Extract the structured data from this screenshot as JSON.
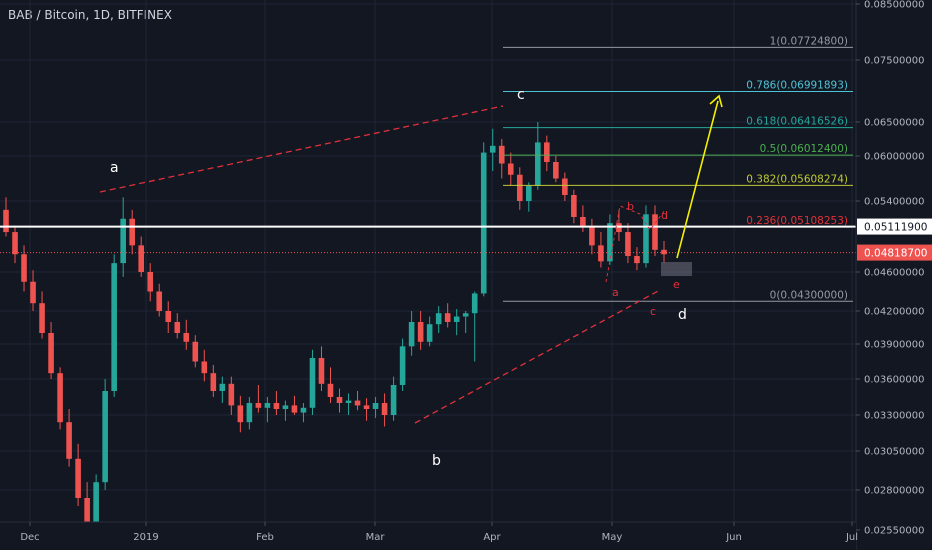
{
  "header": {
    "title": "BAB / Bitcoin, 1D, BITFINEX"
  },
  "chart_data": {
    "type": "candlestick",
    "symbol": "BAB / Bitcoin",
    "interval": "1D",
    "exchange": "BITFINEX",
    "x_ticks": [
      "Dec",
      "2019",
      "Feb",
      "Mar",
      "Apr",
      "May",
      "Jun",
      "Jul"
    ],
    "y_ticks": [
      "0.08500000",
      "0.07500000",
      "0.06500000",
      "0.06000000",
      "0.05400000",
      "0.04600000",
      "0.04200000",
      "0.03900000",
      "0.03600000",
      "0.03300000",
      "0.03050000",
      "0.02800000",
      "0.02550000"
    ],
    "ylim": [
      0.0255,
      0.085
    ],
    "current_price": "0.04818700",
    "horizontal_level": "0.05111900",
    "fibonacci": [
      {
        "label": "1(0.07724800)",
        "ratio": "1",
        "price": 0.077248,
        "color": "#9598a1"
      },
      {
        "label": "0.786(0.06991893)",
        "ratio": "0.786",
        "price": 0.06991893,
        "color": "#4fc3d6"
      },
      {
        "label": "0.618(0.06416526)",
        "ratio": "0.618",
        "price": 0.06416526,
        "color": "#26a69a"
      },
      {
        "label": "0.5(0.06012400)",
        "ratio": "0.5",
        "price": 0.060124,
        "color": "#4caf50"
      },
      {
        "label": "0.382(0.05608274)",
        "ratio": "0.382",
        "price": 0.05608274,
        "color": "#c0ca33"
      },
      {
        "label": "0.236(0.05108253)",
        "ratio": "0.236",
        "price": 0.05108253,
        "color": "#e0313a"
      },
      {
        "label": "0(0.04300000)",
        "ratio": "0",
        "price": 0.043,
        "color": "#9598a1"
      }
    ],
    "wave_labels_major": [
      "a",
      "b",
      "c",
      "d"
    ],
    "wave_labels_minor": [
      "a",
      "b",
      "c",
      "d",
      "e"
    ],
    "colors": {
      "up": "#26a69a",
      "down": "#ef5350",
      "projection": "#f4f000",
      "trendline": "#e0313a"
    },
    "candles": [
      [
        0.053,
        0.0545,
        0.05,
        0.0505
      ],
      [
        0.0505,
        0.0512,
        0.047,
        0.048
      ],
      [
        0.048,
        0.049,
        0.044,
        0.045
      ],
      [
        0.045,
        0.0462,
        0.042,
        0.0428
      ],
      [
        0.0428,
        0.044,
        0.0395,
        0.04
      ],
      [
        0.04,
        0.041,
        0.036,
        0.0365
      ],
      [
        0.0365,
        0.037,
        0.032,
        0.0325
      ],
      [
        0.0325,
        0.0335,
        0.0295,
        0.03
      ],
      [
        0.03,
        0.031,
        0.027,
        0.0275
      ],
      [
        0.0275,
        0.0285,
        0.0252,
        0.0258
      ],
      [
        0.0258,
        0.029,
        0.0252,
        0.0285
      ],
      [
        0.0285,
        0.036,
        0.028,
        0.035
      ],
      [
        0.035,
        0.048,
        0.0345,
        0.047
      ],
      [
        0.047,
        0.0545,
        0.0455,
        0.052
      ],
      [
        0.052,
        0.053,
        0.048,
        0.049
      ],
      [
        0.049,
        0.05,
        0.0455,
        0.046
      ],
      [
        0.046,
        0.047,
        0.043,
        0.044
      ],
      [
        0.044,
        0.0448,
        0.0415,
        0.042
      ],
      [
        0.042,
        0.043,
        0.04,
        0.041
      ],
      [
        0.041,
        0.0418,
        0.0395,
        0.04
      ],
      [
        0.04,
        0.0412,
        0.0385,
        0.0392
      ],
      [
        0.0392,
        0.0398,
        0.037,
        0.0375
      ],
      [
        0.0375,
        0.0385,
        0.0358,
        0.0365
      ],
      [
        0.0365,
        0.0372,
        0.0345,
        0.035
      ],
      [
        0.035,
        0.0362,
        0.034,
        0.0356
      ],
      [
        0.0356,
        0.0362,
        0.033,
        0.0338
      ],
      [
        0.0338,
        0.0346,
        0.0318,
        0.0325
      ],
      [
        0.0325,
        0.0345,
        0.032,
        0.034
      ],
      [
        0.034,
        0.0355,
        0.0332,
        0.0336
      ],
      [
        0.0336,
        0.0345,
        0.0325,
        0.034
      ],
      [
        0.034,
        0.035,
        0.033,
        0.0335
      ],
      [
        0.0335,
        0.0342,
        0.0326,
        0.0338
      ],
      [
        0.0338,
        0.0346,
        0.033,
        0.0332
      ],
      [
        0.0332,
        0.034,
        0.0325,
        0.0336
      ],
      [
        0.0336,
        0.0385,
        0.033,
        0.0378
      ],
      [
        0.0378,
        0.0388,
        0.035,
        0.0356
      ],
      [
        0.0356,
        0.037,
        0.034,
        0.0345
      ],
      [
        0.0345,
        0.0352,
        0.0332,
        0.034
      ],
      [
        0.034,
        0.0348,
        0.033,
        0.0342
      ],
      [
        0.0342,
        0.035,
        0.0334,
        0.0338
      ],
      [
        0.0338,
        0.0344,
        0.0326,
        0.0335
      ],
      [
        0.0335,
        0.0345,
        0.0328,
        0.034
      ],
      [
        0.034,
        0.0348,
        0.0322,
        0.033
      ],
      [
        0.033,
        0.0362,
        0.0326,
        0.0355
      ],
      [
        0.0355,
        0.0395,
        0.035,
        0.0388
      ],
      [
        0.0388,
        0.042,
        0.038,
        0.041
      ],
      [
        0.041,
        0.042,
        0.0385,
        0.0392
      ],
      [
        0.0392,
        0.0415,
        0.0388,
        0.0408
      ],
      [
        0.0408,
        0.0425,
        0.04,
        0.0418
      ],
      [
        0.0418,
        0.0428,
        0.0405,
        0.041
      ],
      [
        0.041,
        0.0422,
        0.0398,
        0.0415
      ],
      [
        0.0415,
        0.042,
        0.04,
        0.0418
      ],
      [
        0.0418,
        0.044,
        0.0375,
        0.0438
      ],
      [
        0.0438,
        0.062,
        0.0435,
        0.0605
      ],
      [
        0.0605,
        0.064,
        0.058,
        0.0615
      ],
      [
        0.0615,
        0.0625,
        0.057,
        0.059
      ],
      [
        0.059,
        0.0605,
        0.056,
        0.0575
      ],
      [
        0.0575,
        0.0585,
        0.053,
        0.054
      ],
      [
        0.054,
        0.0565,
        0.0528,
        0.056
      ],
      [
        0.056,
        0.065,
        0.0555,
        0.062
      ],
      [
        0.062,
        0.063,
        0.058,
        0.0592
      ],
      [
        0.0592,
        0.06,
        0.0565,
        0.057
      ],
      [
        0.057,
        0.0578,
        0.054,
        0.0548
      ],
      [
        0.0548,
        0.0555,
        0.0515,
        0.0522
      ],
      [
        0.0522,
        0.0535,
        0.0505,
        0.0512
      ],
      [
        0.0512,
        0.052,
        0.048,
        0.049
      ],
      [
        0.049,
        0.0505,
        0.0465,
        0.0472
      ],
      [
        0.0472,
        0.0525,
        0.0468,
        0.0515
      ],
      [
        0.0515,
        0.053,
        0.0495,
        0.0505
      ],
      [
        0.0505,
        0.0515,
        0.047,
        0.0478
      ],
      [
        0.0478,
        0.0488,
        0.0462,
        0.047
      ],
      [
        0.047,
        0.0535,
        0.0465,
        0.0525
      ],
      [
        0.0525,
        0.0535,
        0.0478,
        0.0485
      ],
      [
        0.0485,
        0.0495,
        0.047,
        0.048
      ]
    ]
  }
}
